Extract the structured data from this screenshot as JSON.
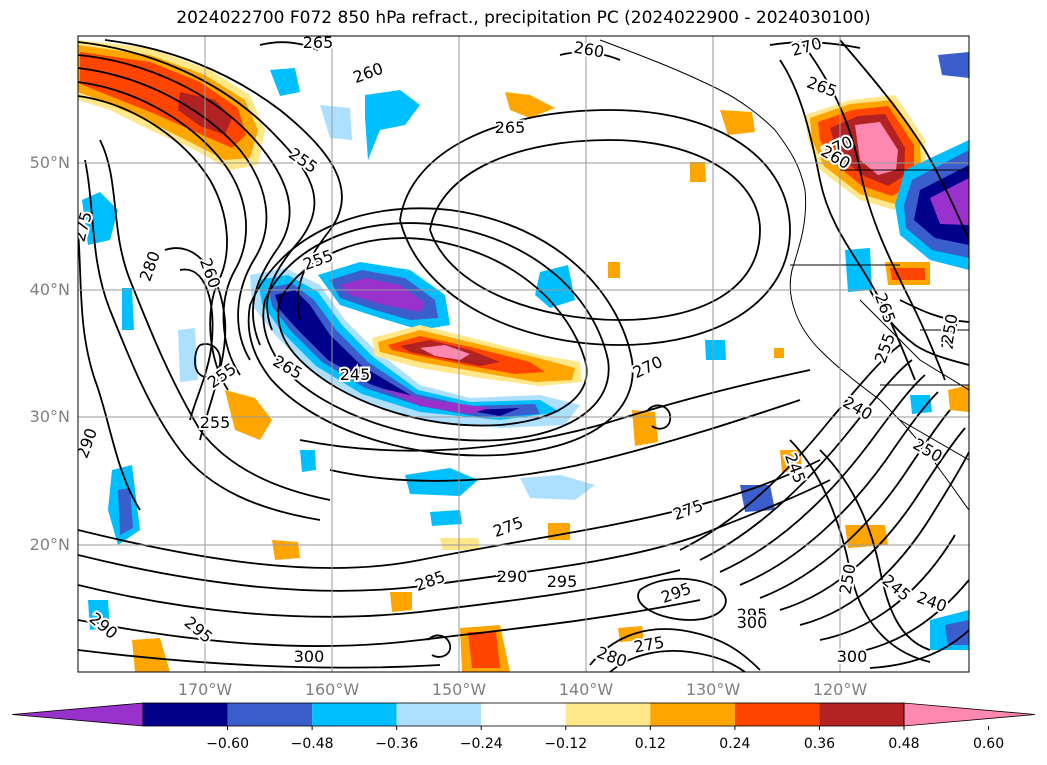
{
  "title": "2024022700 F072 850 hPa refract., precipitation PC (2024022900 - 2024030100)",
  "map": {
    "lat_labels": [
      "50°N",
      "40°N",
      "30°N",
      "20°N"
    ],
    "lon_labels": [
      "170°W",
      "160°W",
      "150°W",
      "140°W",
      "130°W",
      "120°W"
    ],
    "contour_labels": [
      "265",
      "260",
      "260",
      "270",
      "265",
      "265",
      "255",
      "270",
      "275",
      "255",
      "280",
      "260",
      "265",
      "250",
      "245",
      "270",
      "255",
      "265",
      "260",
      "255",
      "250",
      "240",
      "255",
      "245",
      "250",
      "290",
      "275",
      "275",
      "285",
      "290",
      "295",
      "295",
      "290",
      "295",
      "300",
      "295",
      "300",
      "275",
      "280",
      "300",
      "250",
      "245",
      "240"
    ]
  },
  "colorbar": {
    "ticks": [
      "−0.60",
      "−0.48",
      "−0.36",
      "−0.24",
      "−0.12",
      "0.12",
      "0.24",
      "0.36",
      "0.48",
      "0.60"
    ],
    "colors": [
      "#9932cc",
      "#00008b",
      "#3a5fcd",
      "#00bfff",
      "#ade0ff",
      "#ffffff",
      "#ffe78a",
      "#ffa500",
      "#ff4500",
      "#b22222",
      "#ff88b0"
    ]
  }
}
